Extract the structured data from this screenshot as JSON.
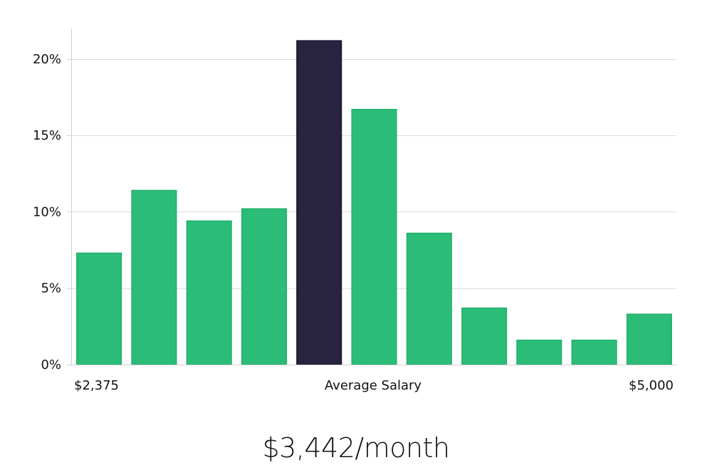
{
  "chart_data": {
    "type": "bar",
    "title": "",
    "xlabel": "",
    "ylabel": "",
    "ylim": [
      0,
      22
    ],
    "y_ticks": [
      0,
      5,
      10,
      15,
      20
    ],
    "y_tick_format": "percent",
    "grid": "horizontal",
    "categories": [
      "1",
      "2",
      "3",
      "4",
      "5",
      "6",
      "7",
      "8",
      "9",
      "10",
      "11"
    ],
    "values": [
      7.3,
      11.4,
      9.4,
      10.2,
      21.2,
      16.7,
      8.6,
      3.7,
      1.6,
      1.6,
      3.3
    ],
    "highlight_index": 4,
    "x_labels": {
      "left": "$2,375",
      "center": "Average Salary",
      "right": "$5,000"
    },
    "colors": {
      "bar": "#2bbd77",
      "bar_stroke": "#22b06c",
      "highlight": "#28233f",
      "highlight_stroke": "#1a1630",
      "grid": "#dcdcdc",
      "axis": "#cfcfcf"
    }
  },
  "headline": "$3,442/month"
}
